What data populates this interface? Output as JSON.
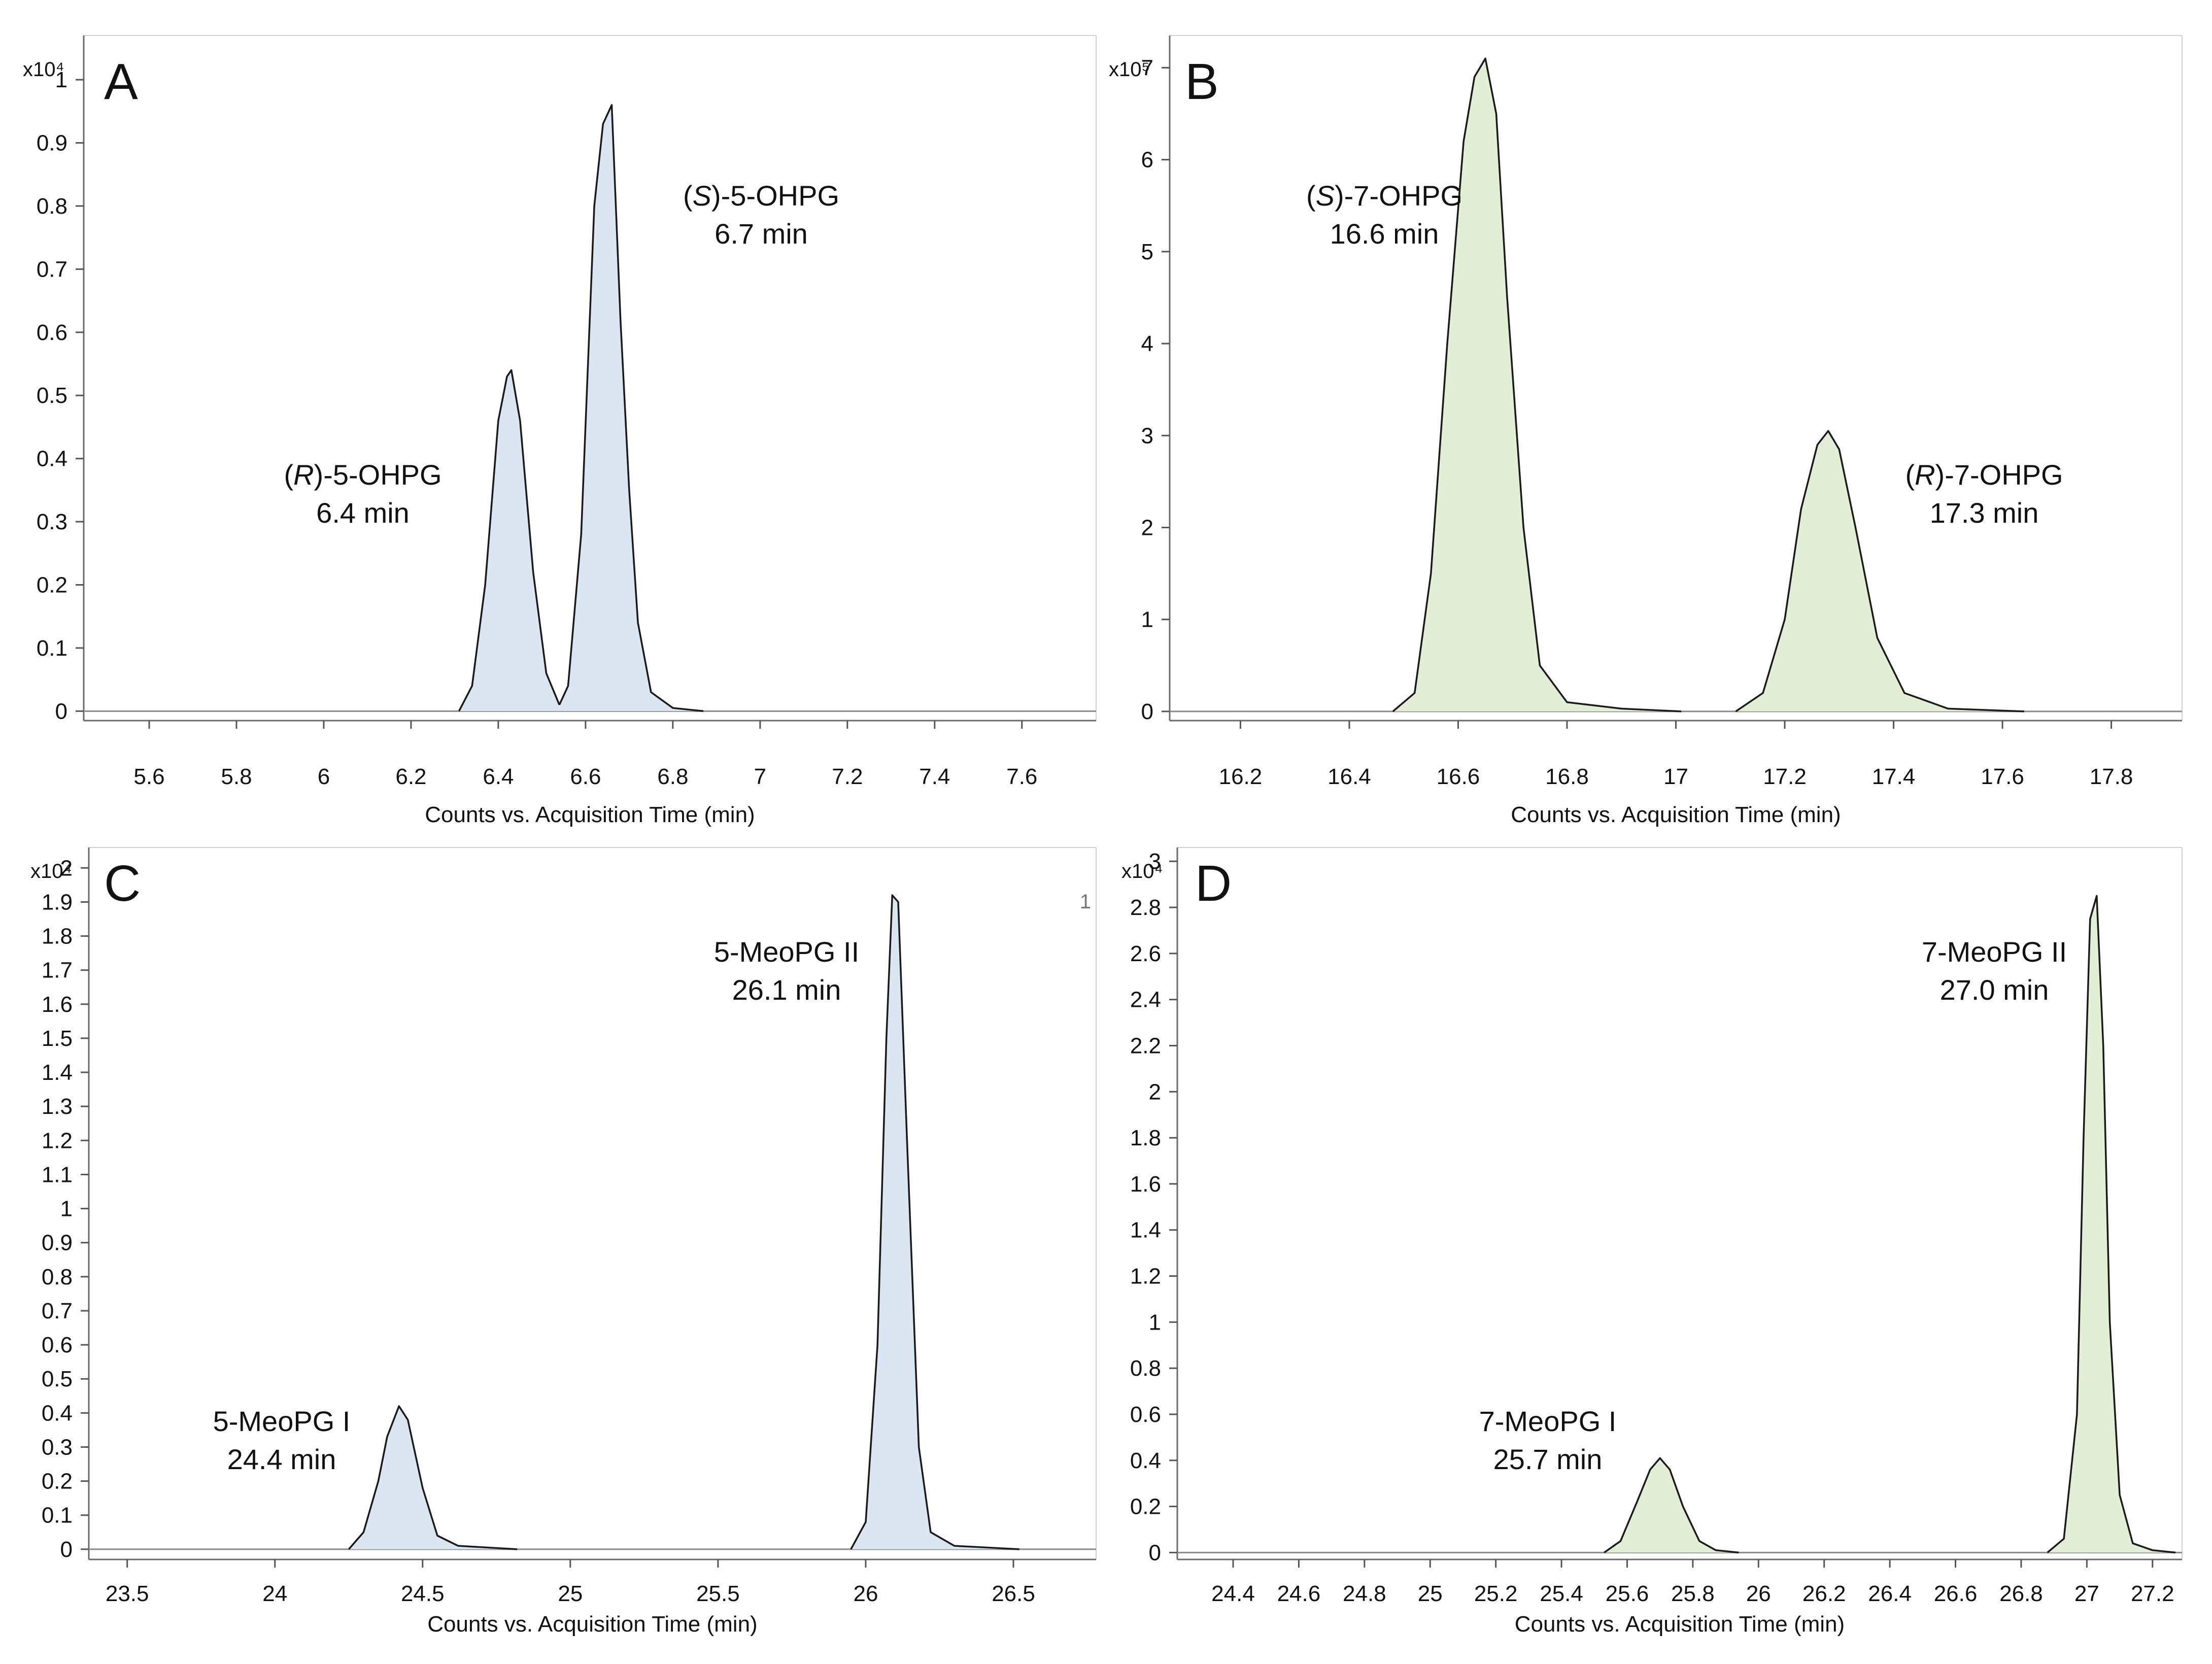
{
  "chart_data": [
    {
      "panel": "A",
      "type": "line",
      "fill": "#dce6f3",
      "exponent_label": "x10⁴",
      "xlabel": "Counts vs. Acquisition Time (min)",
      "xlim": [
        5.45,
        7.77
      ],
      "ylim": [
        -0.015,
        1.07
      ],
      "xticks": [
        5.6,
        5.8,
        6,
        6.2,
        6.4,
        6.6,
        6.8,
        7,
        7.2,
        7.4,
        7.6
      ],
      "xtick_labels": [
        "5.6",
        "5.8",
        "6",
        "6.2",
        "6.4",
        "6.6",
        "6.8",
        "7",
        "7.2",
        "7.4",
        "7.6"
      ],
      "yticks": [
        0,
        0.1,
        0.2,
        0.3,
        0.4,
        0.5,
        0.6,
        0.7,
        0.8,
        0.9,
        1
      ],
      "ytick_labels": [
        "0",
        "0.1",
        "0.2",
        "0.3",
        "0.4",
        "0.5",
        "0.6",
        "0.7",
        "0.8",
        "0.9",
        "1"
      ],
      "segments": [
        {
          "x": [
            6.31,
            6.34,
            6.37,
            6.4,
            6.42,
            6.43,
            6.45,
            6.48,
            6.51,
            6.54
          ],
          "y": [
            0,
            0.04,
            0.2,
            0.46,
            0.53,
            0.54,
            0.46,
            0.22,
            0.06,
            0.01
          ]
        },
        {
          "x": [
            6.54,
            6.56,
            6.59,
            6.62,
            6.64,
            6.66,
            6.68,
            6.7,
            6.72,
            6.75,
            6.8,
            6.87
          ],
          "y": [
            0.01,
            0.04,
            0.28,
            0.8,
            0.93,
            0.96,
            0.62,
            0.35,
            0.14,
            0.03,
            0.005,
            0
          ]
        }
      ],
      "peaks": [
        {
          "name_prefix": "(",
          "name_italic": "R",
          "name_suffix": ")-5-OHPG",
          "time": "6.4 min"
        },
        {
          "name_prefix": "(",
          "name_italic": "S",
          "name_suffix": ")-5-OHPG",
          "time": "6.7 min"
        }
      ],
      "extra_labels": []
    },
    {
      "panel": "B",
      "type": "line",
      "fill": "#e2eed6",
      "exponent_label": "x10⁵",
      "xlabel": "Counts vs. Acquisition Time (min)",
      "xlim": [
        16.07,
        17.93
      ],
      "ylim": [
        -0.1,
        7.35
      ],
      "xticks": [
        16.2,
        16.4,
        16.6,
        16.8,
        17,
        17.2,
        17.4,
        17.6,
        17.8
      ],
      "xtick_labels": [
        "16.2",
        "16.4",
        "16.6",
        "16.8",
        "17",
        "17.2",
        "17.4",
        "17.6",
        "17.8"
      ],
      "yticks": [
        0,
        1,
        2,
        3,
        4,
        5,
        6,
        7
      ],
      "ytick_labels": [
        "0",
        "1",
        "2",
        "3",
        "4",
        "5",
        "6",
        "7"
      ],
      "segments": [
        {
          "x": [
            16.48,
            16.52,
            16.55,
            16.58,
            16.61,
            16.63,
            16.65,
            16.67,
            16.69,
            16.72,
            16.75,
            16.8,
            16.9,
            17.01
          ],
          "y": [
            0,
            0.2,
            1.5,
            4.0,
            6.2,
            6.9,
            7.1,
            6.5,
            4.5,
            2.0,
            0.5,
            0.1,
            0.03,
            0
          ]
        },
        {
          "x": [
            17.11,
            17.16,
            17.2,
            17.23,
            17.26,
            17.28,
            17.3,
            17.33,
            17.37,
            17.42,
            17.5,
            17.64
          ],
          "y": [
            0,
            0.2,
            1.0,
            2.2,
            2.9,
            3.05,
            2.85,
            2.0,
            0.8,
            0.2,
            0.03,
            0
          ]
        }
      ],
      "peaks": [
        {
          "name_prefix": "(",
          "name_italic": "S",
          "name_suffix": ")-7-OHPG",
          "time": "16.6 min"
        },
        {
          "name_prefix": "(",
          "name_italic": "R",
          "name_suffix": ")-7-OHPG",
          "time": "17.3 min"
        }
      ],
      "extra_labels": []
    },
    {
      "panel": "C",
      "type": "line",
      "fill": "#dce6f3",
      "exponent_label": "x10⁴",
      "xlabel": "Counts vs. Acquisition Time (min)",
      "xlim": [
        23.37,
        26.78
      ],
      "ylim": [
        -0.03,
        2.06
      ],
      "xticks": [
        23.5,
        24,
        24.5,
        25,
        25.5,
        26,
        26.5
      ],
      "xtick_labels": [
        "23.5",
        "24",
        "24.5",
        "25",
        "25.5",
        "26",
        "26.5"
      ],
      "yticks": [
        0,
        0.1,
        0.2,
        0.3,
        0.4,
        0.5,
        0.6,
        0.7,
        0.8,
        0.9,
        1,
        1.1,
        1.2,
        1.3,
        1.4,
        1.5,
        1.6,
        1.7,
        1.8,
        1.9,
        2
      ],
      "ytick_labels": [
        "0",
        "0.1",
        "0.2",
        "0.3",
        "0.4",
        "0.5",
        "0.6",
        "0.7",
        "0.8",
        "0.9",
        "1",
        "1.1",
        "1.2",
        "1.3",
        "1.4",
        "1.5",
        "1.6",
        "1.7",
        "1.8",
        "1.9",
        "2"
      ],
      "segments": [
        {
          "x": [
            24.25,
            24.3,
            24.35,
            24.38,
            24.42,
            24.45,
            24.5,
            24.55,
            24.62,
            24.82
          ],
          "y": [
            0,
            0.05,
            0.2,
            0.33,
            0.42,
            0.38,
            0.18,
            0.04,
            0.01,
            0
          ]
        },
        {
          "x": [
            25.95,
            26.0,
            26.04,
            26.07,
            26.09,
            26.11,
            26.14,
            26.18,
            26.22,
            26.3,
            26.52
          ],
          "y": [
            0,
            0.08,
            0.6,
            1.5,
            1.92,
            1.9,
            1.2,
            0.3,
            0.05,
            0.01,
            0
          ]
        }
      ],
      "peaks": [
        {
          "name_prefix": "5-MeoPG I",
          "name_italic": "",
          "name_suffix": "",
          "time": "24.4 min"
        },
        {
          "name_prefix": "5-MeoPG II",
          "name_italic": "",
          "name_suffix": "",
          "time": "26.1 min"
        }
      ],
      "extra_labels": [
        "1"
      ]
    },
    {
      "panel": "D",
      "type": "line",
      "fill": "#e2eed6",
      "exponent_label": "x10⁴",
      "xlabel": "Counts vs. Acquisition Time (min)",
      "xlim": [
        24.23,
        27.29
      ],
      "ylim": [
        -0.03,
        3.06
      ],
      "xticks": [
        24.4,
        24.6,
        24.8,
        25,
        25.2,
        25.4,
        25.6,
        25.8,
        26,
        26.2,
        26.4,
        26.6,
        26.8,
        27,
        27.2
      ],
      "xtick_labels": [
        "24.4",
        "24.6",
        "24.8",
        "25",
        "25.2",
        "25.4",
        "25.6",
        "25.8",
        "26",
        "26.2",
        "26.4",
        "26.6",
        "26.8",
        "27",
        "27.2"
      ],
      "yticks": [
        0,
        0.2,
        0.4,
        0.6,
        0.8,
        1,
        1.2,
        1.4,
        1.6,
        1.8,
        2,
        2.2,
        2.4,
        2.6,
        2.8,
        3
      ],
      "ytick_labels": [
        "0",
        "0.2",
        "0.4",
        "0.6",
        "0.8",
        "1",
        "1.2",
        "1.4",
        "1.6",
        "1.8",
        "2",
        "2.2",
        "2.4",
        "2.6",
        "2.8",
        "3"
      ],
      "segments": [
        {
          "x": [
            25.53,
            25.58,
            25.63,
            25.67,
            25.7,
            25.73,
            25.77,
            25.82,
            25.87,
            25.94
          ],
          "y": [
            0,
            0.05,
            0.22,
            0.36,
            0.41,
            0.36,
            0.2,
            0.05,
            0.01,
            0
          ]
        },
        {
          "x": [
            26.88,
            26.93,
            26.97,
            26.99,
            27.01,
            27.03,
            27.05,
            27.07,
            27.1,
            27.14,
            27.2,
            27.27
          ],
          "y": [
            0,
            0.06,
            0.6,
            1.8,
            2.75,
            2.85,
            2.2,
            1.0,
            0.25,
            0.04,
            0.01,
            0
          ]
        }
      ],
      "peaks": [
        {
          "name_prefix": "7-MeoPG I",
          "name_italic": "",
          "name_suffix": "",
          "time": "25.7 min"
        },
        {
          "name_prefix": "7-MeoPG II",
          "name_italic": "",
          "name_suffix": "",
          "time": "27.0 min"
        }
      ],
      "extra_labels": []
    }
  ]
}
